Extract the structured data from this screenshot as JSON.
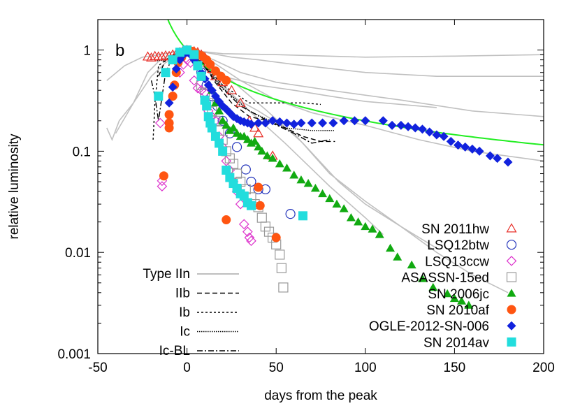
{
  "chart_data": {
    "type": "scatter",
    "panel_label": "b",
    "xlabel": "days from the peak",
    "ylabel": "relative luminosity",
    "xlim": [
      -50,
      200
    ],
    "ylim": [
      0.001,
      2
    ],
    "yscale": "log",
    "x_ticks": [
      {
        "value": -50,
        "label": "-50"
      },
      {
        "value": 0,
        "label": "0"
      },
      {
        "value": 50,
        "label": "50"
      },
      {
        "value": 100,
        "label": "100"
      },
      {
        "value": 150,
        "label": "150"
      },
      {
        "value": 200,
        "label": "200"
      }
    ],
    "y_ticks": [
      {
        "value": 1,
        "label": "1"
      },
      {
        "value": 0.1,
        "label": "0.1"
      },
      {
        "value": 0.01,
        "label": "0.01"
      },
      {
        "value": 0.001,
        "label": "0.001"
      }
    ],
    "grid": false,
    "legend_types": [
      {
        "label": "Type IIn",
        "dash": "none",
        "color": "#aaaaaa"
      },
      {
        "label": "IIb",
        "dash": "7,4",
        "color": "#000000"
      },
      {
        "label": "Ib",
        "dash": "3,3",
        "color": "#000000"
      },
      {
        "label": "Ic",
        "dash": "1.5,1.5",
        "color": "#000000"
      },
      {
        "label": "Ic-BL",
        "dash": "8,3,2,3",
        "color": "#000000"
      }
    ],
    "series": [
      {
        "name": "SN 2011hw",
        "marker": "triangle-open",
        "color": "#e8302a",
        "points": [
          [
            -22,
            0.86
          ],
          [
            -20,
            0.84
          ],
          [
            -18,
            0.87
          ],
          [
            -16,
            0.86
          ],
          [
            -14,
            0.86
          ],
          [
            -12,
            0.88
          ],
          [
            -10,
            0.87
          ],
          [
            -8,
            0.9
          ],
          [
            -6,
            0.92
          ],
          [
            -4,
            0.95
          ],
          [
            -2,
            1.0
          ],
          [
            0,
            1.0
          ],
          [
            2,
            0.98
          ],
          [
            4,
            0.97
          ],
          [
            6,
            0.95
          ],
          [
            8,
            0.9
          ],
          [
            10,
            0.85
          ],
          [
            12,
            0.75
          ],
          [
            14,
            0.65
          ],
          [
            16,
            0.55
          ],
          [
            20,
            0.48
          ],
          [
            25,
            0.4
          ],
          [
            30,
            0.3
          ],
          [
            35,
            0.2
          ],
          [
            38,
            0.17
          ],
          [
            40,
            0.15
          ],
          [
            48,
            0.09
          ]
        ]
      },
      {
        "name": "LSQ12btw",
        "marker": "circle-open",
        "color": "#2233bb",
        "points": [
          [
            2,
            0.95
          ],
          [
            5,
            0.8
          ],
          [
            8,
            0.6
          ],
          [
            11,
            0.45
          ],
          [
            14,
            0.35
          ],
          [
            17,
            0.28
          ],
          [
            20,
            0.2
          ],
          [
            24,
            0.15
          ],
          [
            28,
            0.11
          ],
          [
            33,
            0.066
          ],
          [
            36,
            0.05
          ],
          [
            40,
            0.042
          ],
          [
            44,
            0.042
          ],
          [
            58,
            0.024
          ]
        ]
      },
      {
        "name": "LSQ13ccw",
        "marker": "diamond-open",
        "color": "#dd33cc",
        "points": [
          [
            -15,
            0.19
          ],
          [
            -14,
            0.045
          ],
          [
            -14,
            0.051
          ],
          [
            -4,
            0.6
          ],
          [
            -2,
            0.72
          ],
          [
            0,
            0.8
          ],
          [
            2,
            0.75
          ],
          [
            4,
            0.5
          ],
          [
            6,
            0.42
          ],
          [
            8,
            0.4
          ],
          [
            10,
            0.38
          ],
          [
            12,
            0.25
          ],
          [
            14,
            0.22
          ],
          [
            16,
            0.2
          ],
          [
            18,
            0.14
          ],
          [
            20,
            0.11
          ],
          [
            22,
            0.08
          ],
          [
            24,
            0.065
          ],
          [
            26,
            0.05
          ],
          [
            28,
            0.04
          ],
          [
            30,
            0.03
          ],
          [
            32,
            0.019
          ],
          [
            34,
            0.016
          ],
          [
            35,
            0.014
          ],
          [
            36,
            0.013
          ]
        ]
      },
      {
        "name": "ASASSN-15ed",
        "marker": "square-open",
        "color": "#999999",
        "points": [
          [
            8,
            0.45
          ],
          [
            10,
            0.38
          ],
          [
            12,
            0.3
          ],
          [
            14,
            0.25
          ],
          [
            16,
            0.2
          ],
          [
            18,
            0.16
          ],
          [
            20,
            0.13
          ],
          [
            22,
            0.1
          ],
          [
            24,
            0.085
          ],
          [
            26,
            0.075
          ],
          [
            28,
            0.06
          ],
          [
            30,
            0.05
          ],
          [
            33,
            0.042
          ],
          [
            36,
            0.035
          ],
          [
            38,
            0.03
          ],
          [
            40,
            0.028
          ],
          [
            42,
            0.022
          ],
          [
            44,
            0.018
          ],
          [
            46,
            0.016
          ],
          [
            48,
            0.014
          ],
          [
            50,
            0.012
          ],
          [
            52,
            0.0095
          ],
          [
            53,
            0.007
          ],
          [
            54,
            0.0045
          ]
        ]
      },
      {
        "name": "SN 2006jc",
        "marker": "triangle-filled",
        "color": "#11aa11",
        "points": [
          [
            14,
            0.4
          ],
          [
            16,
            0.3
          ],
          [
            18,
            0.25
          ],
          [
            20,
            0.2
          ],
          [
            22,
            0.18
          ],
          [
            24,
            0.16
          ],
          [
            26,
            0.17
          ],
          [
            28,
            0.15
          ],
          [
            30,
            0.14
          ],
          [
            32,
            0.14
          ],
          [
            34,
            0.13
          ],
          [
            36,
            0.12
          ],
          [
            38,
            0.125
          ],
          [
            40,
            0.11
          ],
          [
            42,
            0.1
          ],
          [
            45,
            0.09
          ],
          [
            48,
            0.085
          ],
          [
            52,
            0.075
          ],
          [
            56,
            0.068
          ],
          [
            60,
            0.058
          ],
          [
            64,
            0.052
          ],
          [
            68,
            0.048
          ],
          [
            72,
            0.043
          ],
          [
            76,
            0.038
          ],
          [
            80,
            0.034
          ],
          [
            84,
            0.03
          ],
          [
            88,
            0.027
          ],
          [
            92,
            0.022
          ],
          [
            96,
            0.02
          ],
          [
            100,
            0.018
          ],
          [
            104,
            0.017
          ],
          [
            108,
            0.015
          ],
          [
            114,
            0.011
          ],
          [
            118,
            0.009
          ],
          [
            126,
            0.0075
          ],
          [
            132,
            0.0055
          ],
          [
            138,
            0.0045
          ],
          [
            146,
            0.0039
          ],
          [
            150,
            0.0035
          ],
          [
            154,
            0.0033
          ],
          [
            158,
            0.003
          ]
        ]
      },
      {
        "name": "SN 2010af",
        "marker": "circle-filled",
        "color": "#ff5511",
        "points": [
          [
            -13,
            0.057
          ],
          [
            -10,
            0.19
          ],
          [
            -10,
            0.17
          ],
          [
            -10,
            0.23
          ],
          [
            -8,
            0.35
          ],
          [
            -7,
            0.45
          ],
          [
            -6,
            0.6
          ],
          [
            -5,
            0.75
          ],
          [
            -3,
            0.85
          ],
          [
            -1,
            0.95
          ],
          [
            1,
            1.0
          ],
          [
            3,
            0.97
          ],
          [
            5,
            0.93
          ],
          [
            8,
            0.88
          ],
          [
            11,
            0.8
          ],
          [
            13,
            0.72
          ],
          [
            16,
            0.62
          ],
          [
            19,
            0.55
          ],
          [
            22,
            0.5
          ],
          [
            22,
            0.021
          ],
          [
            40,
            0.044
          ],
          [
            41,
            0.029
          ],
          [
            50,
            0.014
          ]
        ]
      },
      {
        "name": "OGLE-2012-SN-006",
        "marker": "diamond-filled",
        "color": "#1122dd",
        "points": [
          [
            -10,
            0.3
          ],
          [
            -8,
            0.43
          ],
          [
            -6,
            0.65
          ],
          [
            -4,
            0.8
          ],
          [
            -2,
            0.9
          ],
          [
            0,
            0.95
          ],
          [
            2,
            0.9
          ],
          [
            4,
            0.8
          ],
          [
            6,
            0.72
          ],
          [
            8,
            0.6
          ],
          [
            10,
            0.52
          ],
          [
            12,
            0.45
          ],
          [
            14,
            0.4
          ],
          [
            16,
            0.35
          ],
          [
            18,
            0.31
          ],
          [
            20,
            0.28
          ],
          [
            22,
            0.26
          ],
          [
            24,
            0.24
          ],
          [
            26,
            0.22
          ],
          [
            28,
            0.21
          ],
          [
            30,
            0.2
          ],
          [
            32,
            0.195
          ],
          [
            34,
            0.19
          ],
          [
            36,
            0.185
          ],
          [
            40,
            0.19
          ],
          [
            44,
            0.19
          ],
          [
            48,
            0.2
          ],
          [
            52,
            0.195
          ],
          [
            56,
            0.19
          ],
          [
            60,
            0.185
          ],
          [
            64,
            0.19
          ],
          [
            70,
            0.19
          ],
          [
            76,
            0.19
          ],
          [
            82,
            0.19
          ],
          [
            88,
            0.2
          ],
          [
            94,
            0.2
          ],
          [
            100,
            0.2
          ],
          [
            110,
            0.2
          ],
          [
            115,
            0.18
          ],
          [
            120,
            0.18
          ],
          [
            124,
            0.175
          ],
          [
            128,
            0.17
          ],
          [
            132,
            0.165
          ],
          [
            136,
            0.155
          ],
          [
            140,
            0.145
          ],
          [
            144,
            0.14
          ],
          [
            148,
            0.125
          ],
          [
            152,
            0.115
          ],
          [
            156,
            0.11
          ],
          [
            160,
            0.105
          ],
          [
            164,
            0.1
          ],
          [
            170,
            0.09
          ],
          [
            174,
            0.085
          ],
          [
            180,
            0.078
          ]
        ]
      },
      {
        "name": "SN 2014av",
        "marker": "square-filled",
        "color": "#22dddd",
        "points": [
          [
            -16,
            0.35
          ],
          [
            -12,
            0.6
          ],
          [
            -8,
            0.8
          ],
          [
            -4,
            0.95
          ],
          [
            0,
            1.0
          ],
          [
            4,
            0.9
          ],
          [
            6,
            0.7
          ],
          [
            8,
            0.55
          ],
          [
            10,
            0.32
          ],
          [
            11,
            0.28
          ],
          [
            12,
            0.22
          ],
          [
            13,
            0.19
          ],
          [
            14,
            0.17
          ],
          [
            16,
            0.14
          ],
          [
            18,
            0.12
          ],
          [
            20,
            0.1
          ],
          [
            22,
            0.065
          ],
          [
            24,
            0.055
          ],
          [
            26,
            0.048
          ],
          [
            28,
            0.043
          ],
          [
            30,
            0.038
          ],
          [
            32,
            0.036
          ],
          [
            34,
            0.031
          ],
          [
            36,
            0.029
          ],
          [
            65,
            0.023
          ]
        ]
      }
    ],
    "model_line": {
      "color": "#22ee22",
      "note": "t^-5/3"
    },
    "background_curves": {
      "color": "#c0c0c0"
    },
    "type_curves": [
      {
        "dash": "7,4"
      },
      {
        "dash": "3,3"
      },
      {
        "dash": "1.5,1.5"
      },
      {
        "dash": "8,3,2,3"
      }
    ]
  }
}
